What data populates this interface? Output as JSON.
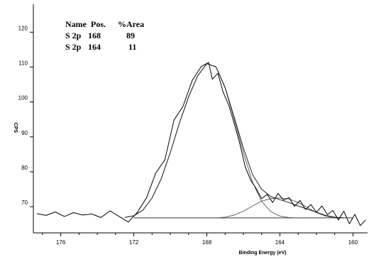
{
  "chart_data": {
    "type": "line",
    "xlabel": "Binding Energy (eV)",
    "ylabel": "CPS",
    "x_reversed": true,
    "xlim": [
      177.5,
      159.2
    ],
    "ylim": [
      62.5,
      128
    ],
    "x_ticks": [
      176,
      172,
      168,
      164,
      160
    ],
    "y_ticks": [
      70,
      80,
      90,
      100,
      110,
      120
    ],
    "grid": false,
    "legend": "none",
    "peak_table": {
      "headers": [
        "Name",
        "Pos.",
        "%Area"
      ],
      "rows": [
        {
          "name": "S 2p",
          "pos": "168",
          "area": "89"
        },
        {
          "name": "S 2p",
          "pos": "164",
          "area": "11"
        }
      ]
    },
    "background": {
      "x": [
        172.0,
        160.0
      ],
      "y": [
        66.8,
        66.8
      ]
    },
    "components": [
      {
        "x": [
          172.5,
          172.0,
          171.5,
          171.0,
          170.5,
          170.0,
          169.5,
          169.0,
          168.5,
          168.0,
          167.5,
          167.0,
          166.5,
          166.0,
          165.5,
          165.0,
          164.5,
          164.0,
          163.5,
          163.0
        ],
        "y": [
          66.9,
          67.4,
          69.0,
          72.5,
          78.0,
          85.5,
          94.0,
          101.5,
          107.5,
          111.0,
          110.0,
          104.0,
          95.0,
          85.5,
          77.0,
          71.5,
          68.6,
          67.3,
          66.9,
          66.8
        ]
      },
      {
        "x": [
          167.5,
          167.0,
          166.5,
          166.0,
          165.5,
          165.0,
          164.5,
          164.0,
          163.5,
          163.0,
          162.5,
          162.0,
          161.5,
          161.0
        ],
        "y": [
          66.8,
          67.0,
          67.6,
          68.7,
          70.2,
          71.6,
          72.3,
          72.5,
          72.2,
          71.2,
          69.8,
          68.3,
          67.3,
          66.9
        ]
      }
    ],
    "envelope": {
      "x": [
        172.5,
        172.0,
        171.5,
        171.0,
        170.5,
        170.0,
        169.5,
        169.0,
        168.5,
        168.0,
        167.5,
        167.0,
        166.5,
        166.0,
        165.5,
        165.0,
        164.5,
        164.0,
        163.5,
        163.0,
        162.5,
        162.0,
        161.5,
        161.0,
        160.5
      ],
      "y": [
        66.9,
        67.4,
        69.0,
        72.5,
        78.0,
        85.5,
        94.0,
        101.5,
        107.5,
        111.0,
        110.1,
        104.2,
        95.6,
        86.8,
        79.2,
        75.0,
        72.9,
        72.0,
        71.2,
        70.2,
        69.3,
        68.4,
        67.5,
        67.0,
        66.8
      ]
    },
    "raw_data": {
      "x": [
        177.3,
        176.8,
        176.3,
        175.8,
        175.3,
        174.8,
        174.3,
        173.8,
        173.3,
        172.8,
        172.3,
        171.8,
        171.3,
        170.8,
        170.3,
        169.8,
        169.3,
        168.8,
        168.3,
        167.9,
        167.7,
        167.4,
        167.1,
        166.8,
        166.5,
        166.2,
        165.9,
        165.6,
        165.3,
        165.0,
        164.7,
        164.4,
        164.1,
        163.8,
        163.5,
        163.2,
        162.9,
        162.6,
        162.3,
        162.0,
        161.7,
        161.4,
        161.1,
        160.8,
        160.5,
        160.2,
        159.9,
        159.6,
        159.3
      ],
      "y": [
        68.0,
        67.5,
        68.5,
        67.2,
        68.3,
        67.6,
        67.9,
        66.9,
        68.8,
        67.2,
        65.6,
        68.4,
        72.6,
        79.6,
        83.4,
        94.8,
        98.8,
        106.2,
        110.2,
        111.3,
        106.5,
        108.2,
        102.7,
        99.1,
        93.8,
        88.2,
        81.4,
        77.6,
        75.2,
        72.3,
        73.5,
        71.2,
        73.8,
        71.9,
        72.6,
        70.1,
        71.8,
        69.2,
        70.6,
        68.4,
        70.2,
        67.7,
        68.9,
        66.2,
        68.7,
        65.1,
        67.8,
        64.6,
        66.2
      ]
    }
  }
}
